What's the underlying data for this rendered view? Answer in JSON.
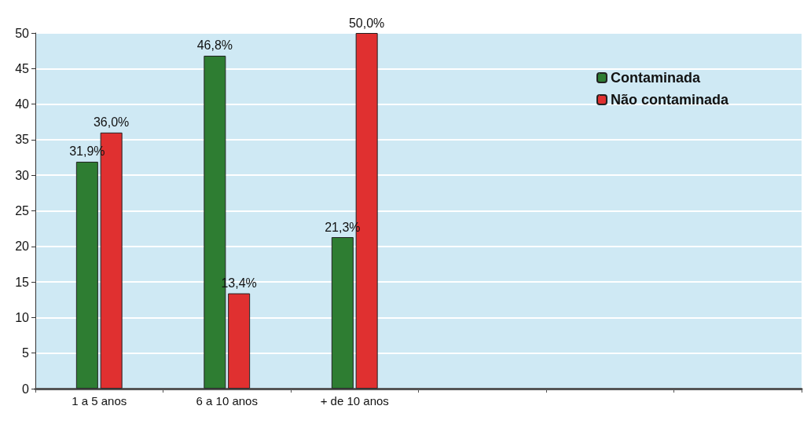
{
  "chart_data": {
    "type": "bar",
    "categories": [
      "1 a 5 anos",
      "6 a 10 anos",
      "+ de 10 anos",
      null,
      null,
      null
    ],
    "series": [
      {
        "name": "Contaminada",
        "color": "#2e7d32",
        "values": [
          31.9,
          46.8,
          21.3,
          null,
          null,
          null
        ],
        "value_labels": [
          "31,9%",
          "46,8%",
          "21,3%",
          null,
          null,
          null
        ]
      },
      {
        "name": "Não contaminada",
        "color": "#e03030",
        "values": [
          36.0,
          13.4,
          50.0,
          null,
          null,
          null
        ],
        "value_labels": [
          "36,0%",
          "13,4%",
          "50,0%",
          null,
          null,
          null
        ]
      }
    ],
    "ylim": [
      0,
      50
    ],
    "yticks": [
      0,
      5,
      10,
      15,
      20,
      25,
      30,
      35,
      40,
      45,
      50
    ],
    "grid": "y",
    "legend": "top right"
  }
}
